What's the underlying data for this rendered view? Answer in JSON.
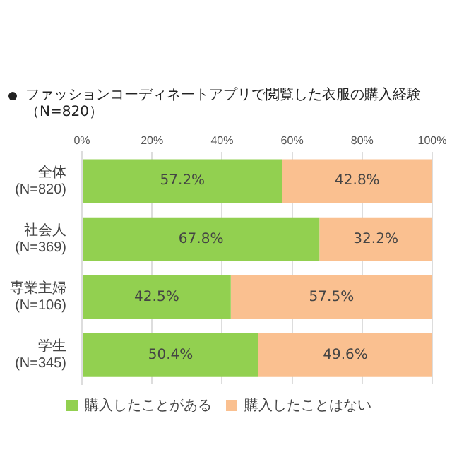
{
  "chart_data": {
    "type": "bar",
    "orientation": "horizontal",
    "stacked": true,
    "title": "ファッションコーディネートアプリで閲覧した衣服の購入経験（N=820）",
    "categories": [
      "全体\n(N=820)",
      "社会人\n(N=369)",
      "専業主婦\n(N=106)",
      "学生\n(N=345)"
    ],
    "series": [
      {
        "name": "購入したことがある",
        "color": "#92d050",
        "values": [
          57.2,
          67.8,
          42.5,
          50.4
        ]
      },
      {
        "name": "購入したことはない",
        "color": "#fac090",
        "values": [
          42.8,
          32.2,
          57.5,
          49.6
        ]
      }
    ],
    "value_labels": [
      [
        "57.2%",
        "67.8%",
        "42.5%",
        "50.4%"
      ],
      [
        "42.8%",
        "32.2%",
        "57.5%",
        "49.6%"
      ]
    ],
    "xlim": [
      0,
      100
    ],
    "xticks": [
      {
        "value": 0,
        "label": "0%"
      },
      {
        "value": 20,
        "label": "20%"
      },
      {
        "value": 40,
        "label": "40%"
      },
      {
        "value": 60,
        "label": "60%"
      },
      {
        "value": 80,
        "label": "80%"
      },
      {
        "value": 100,
        "label": "100%"
      }
    ],
    "grid": "x",
    "legend": "bottom"
  }
}
